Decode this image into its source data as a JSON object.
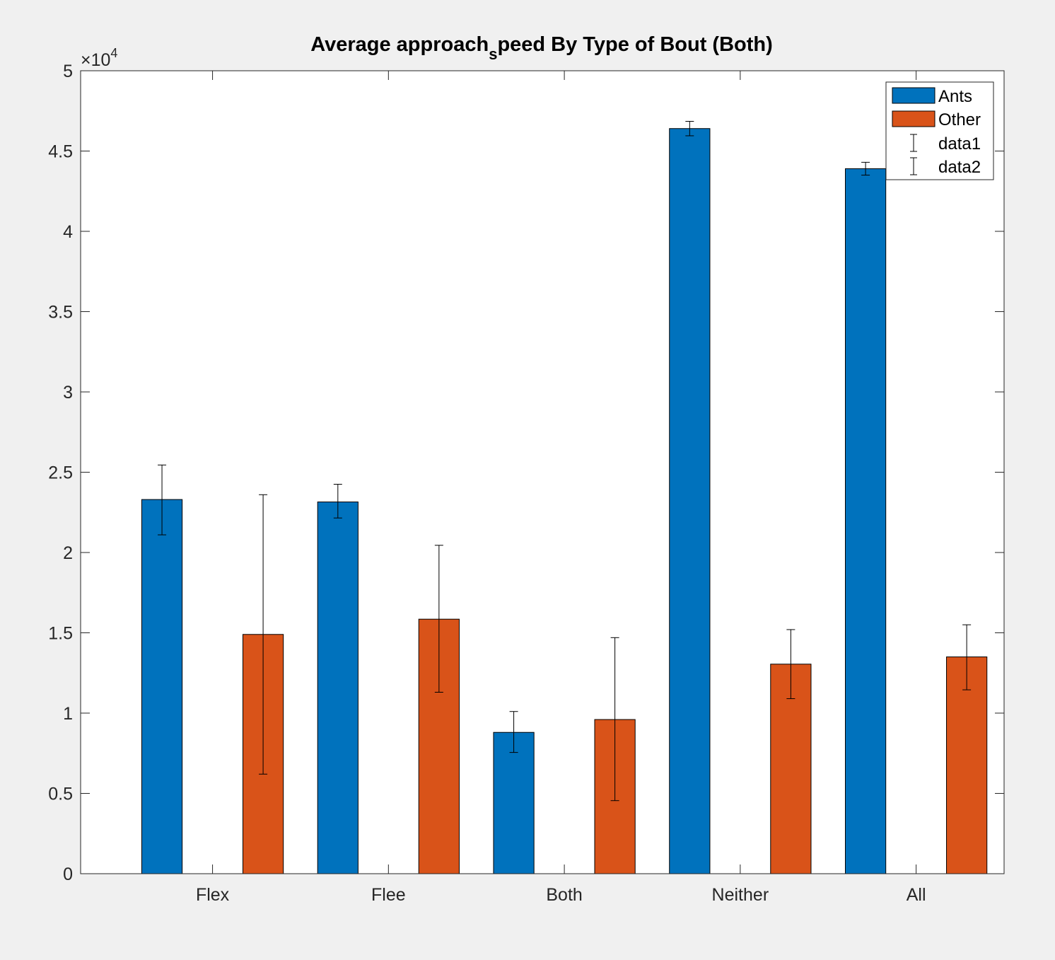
{
  "chart_data": {
    "type": "bar",
    "title": "Average approach",
    "title_subscript": "s",
    "title_tail": "peed By Type of Bout (Both)",
    "xlabel": "",
    "ylabel": "",
    "categories": [
      "Flex",
      "Flee",
      "Both",
      "Neither",
      "All"
    ],
    "ylim": [
      0,
      50000
    ],
    "y_ticks": [
      0,
      5000,
      10000,
      15000,
      20000,
      25000,
      30000,
      35000,
      40000,
      45000,
      50000
    ],
    "y_tick_labels": [
      "0",
      "0.5",
      "1",
      "1.5",
      "2",
      "2.5",
      "3",
      "3.5",
      "4",
      "4.5",
      "5"
    ],
    "y_exponent_base": "×10",
    "y_exponent_power": "4",
    "grid": false,
    "legend_position": "top-right",
    "series": [
      {
        "name": "Ants",
        "color": "#0072bd",
        "values": [
          23300,
          23150,
          8800,
          46400,
          43900
        ],
        "err_low": [
          21100,
          22150,
          7550,
          45950,
          43500
        ],
        "err_high": [
          25450,
          24250,
          10100,
          46850,
          44300
        ]
      },
      {
        "name": "Other",
        "color": "#d95319",
        "values": [
          14900,
          15850,
          9600,
          13050,
          13500
        ],
        "err_low": [
          6200,
          11300,
          4550,
          10900,
          11450
        ],
        "err_high": [
          23600,
          20450,
          14700,
          15200,
          15500
        ]
      }
    ],
    "legend": [
      {
        "label": "Ants",
        "kind": "patch",
        "color": "#0072bd"
      },
      {
        "label": "Other",
        "kind": "patch",
        "color": "#d95319"
      },
      {
        "label": "data1",
        "kind": "errorbar"
      },
      {
        "label": "data2",
        "kind": "errorbar"
      }
    ]
  }
}
